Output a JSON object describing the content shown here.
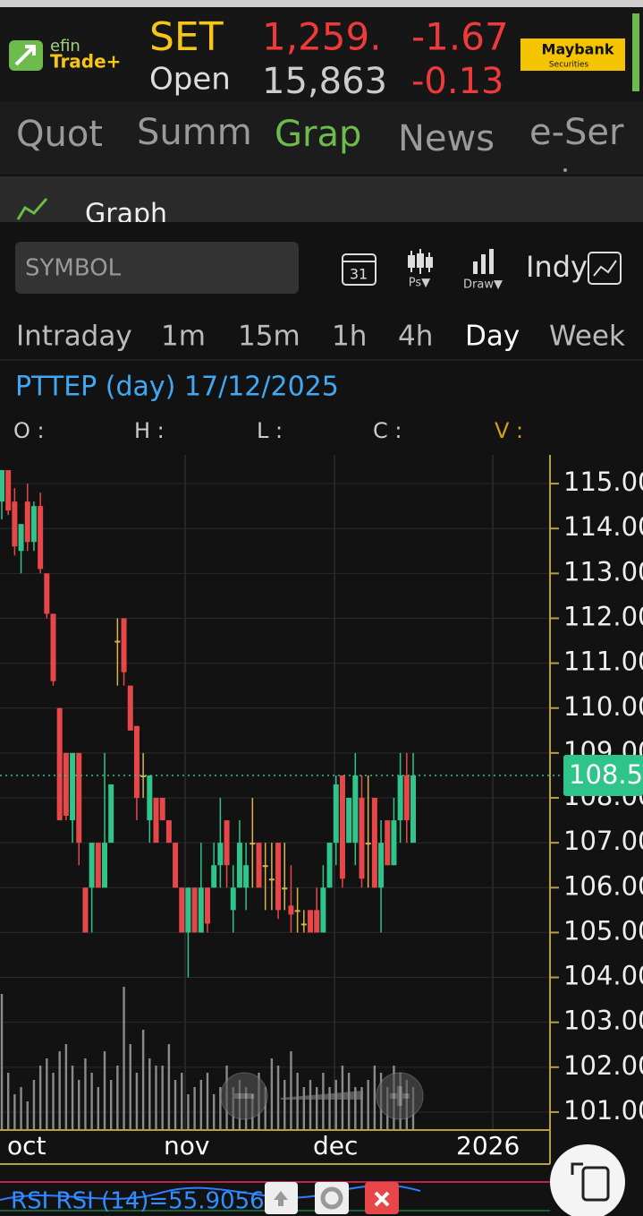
{
  "header": {
    "logo_top": "efin",
    "logo_bottom": "Trade+",
    "index": "SET",
    "index_value": "1,259.",
    "change": "-1.67",
    "open_label": "Open",
    "open_value": "15,863",
    "change2": "-0.13",
    "broker": "Maybank",
    "broker_sub": "Securities"
  },
  "tabs": [
    "Quot",
    "Summ",
    "Grap",
    "News",
    "e-Ser"
  ],
  "active_tab": 2,
  "section_title": "Graph",
  "symbol_placeholder": "SYMBOL",
  "tools": {
    "calendar": "31",
    "ps": "Ps▼",
    "draw": "Draw▼",
    "indy": "Indy"
  },
  "intervals": [
    "Intraday",
    "1m",
    "15m",
    "1h",
    "4h",
    "Day",
    "Week"
  ],
  "active_interval": 5,
  "chart_data": {
    "type": "candlestick",
    "title": "PTTEP (day) 17/12/2025",
    "info_labels": [
      "O :",
      "H :",
      "L :",
      "C :",
      "V :"
    ],
    "open": [
      114.6,
      115.3,
      114.6,
      113.5,
      114.6,
      113.7,
      114.5,
      113.0,
      112.1,
      110.0,
      109.0,
      107.5,
      109.0,
      106.0,
      106.0,
      107.0,
      106.0,
      107.0,
      111.5,
      112.0,
      110.5,
      109.6,
      108.5,
      107.5,
      108.0,
      108.0,
      107.5,
      107.0,
      106.0,
      105.0,
      106.0,
      105.0,
      106.0,
      106.0,
      106.5,
      107.5,
      105.5,
      106.0,
      106.0,
      107.0,
      107.0,
      106.5,
      106.2,
      107.0,
      106.0,
      105.6,
      105.5,
      105.2,
      105.5,
      105.5,
      105.0,
      106.0,
      107.0,
      108.5,
      107.0,
      107.0,
      108.0,
      107.0,
      108.0,
      106.0,
      107.5,
      106.5,
      107.5,
      108.5,
      107.0
    ],
    "high": [
      115.3,
      115.3,
      114.9,
      114.1,
      115.0,
      114.6,
      114.8,
      113.0,
      112.1,
      110.0,
      109.0,
      109.0,
      109.0,
      106.0,
      107.0,
      107.0,
      109.0,
      108.3,
      112.0,
      112.0,
      110.5,
      109.6,
      109.0,
      108.5,
      108.0,
      108.0,
      107.5,
      107.0,
      106.0,
      106.0,
      106.0,
      107.0,
      106.0,
      107.0,
      108.0,
      107.5,
      106.5,
      107.5,
      107.0,
      108.0,
      107.0,
      107.0,
      107.0,
      107.0,
      107.0,
      106.5,
      106.0,
      105.5,
      105.5,
      106.0,
      106.5,
      107.0,
      108.5,
      108.5,
      108.0,
      109.0,
      108.5,
      108.5,
      108.0,
      107.5,
      107.5,
      108.0,
      109.0,
      109.0,
      109.0
    ],
    "low": [
      114.2,
      114.3,
      113.4,
      113.0,
      113.5,
      113.5,
      113.0,
      112.0,
      110.5,
      107.5,
      107.5,
      107.0,
      106.5,
      105.0,
      105.0,
      106.0,
      106.0,
      107.0,
      110.5,
      110.5,
      109.5,
      107.5,
      108.0,
      107.0,
      107.0,
      107.5,
      107.0,
      106.0,
      105.0,
      104.0,
      105.0,
      105.0,
      105.0,
      106.0,
      106.0,
      106.0,
      105.0,
      106.0,
      105.5,
      106.0,
      106.0,
      105.5,
      105.5,
      105.3,
      105.5,
      105.0,
      105.0,
      105.0,
      105.0,
      105.0,
      105.0,
      106.0,
      106.5,
      106.0,
      107.0,
      106.5,
      106.0,
      106.0,
      106.0,
      105.0,
      106.5,
      106.5,
      107.0,
      107.0,
      107.0
    ],
    "close": [
      115.3,
      114.4,
      113.6,
      114.1,
      113.7,
      114.5,
      113.1,
      112.1,
      110.6,
      107.5,
      107.6,
      109.0,
      107.0,
      105.0,
      107.0,
      106.0,
      107.0,
      108.3,
      111.5,
      110.8,
      109.5,
      108.0,
      108.5,
      108.5,
      107.0,
      107.5,
      107.0,
      106.0,
      105.0,
      106.0,
      105.0,
      106.0,
      105.2,
      106.5,
      107.0,
      106.5,
      106.0,
      107.0,
      106.5,
      107.0,
      106.0,
      106.5,
      106.2,
      105.5,
      106.0,
      105.4,
      105.5,
      105.2,
      105.0,
      105.0,
      106.0,
      107.0,
      108.3,
      106.2,
      108.0,
      108.5,
      106.2,
      107.0,
      106.0,
      107.0,
      106.5,
      107.5,
      108.5,
      107.5,
      108.5
    ],
    "volume": [
      95,
      40,
      25,
      30,
      20,
      35,
      45,
      50,
      40,
      55,
      60,
      45,
      35,
      50,
      40,
      30,
      55,
      35,
      45,
      100,
      60,
      40,
      70,
      50,
      45,
      45,
      60,
      35,
      40,
      25,
      30,
      35,
      40,
      25,
      30,
      45,
      30,
      35,
      30,
      25,
      40,
      30,
      50,
      45,
      35,
      55,
      40,
      30,
      35,
      30,
      40,
      30,
      35,
      45,
      40,
      30,
      30,
      35,
      45,
      40,
      30,
      45,
      40,
      35,
      30
    ],
    "x_labels": [
      "oct",
      "nov",
      "dec",
      "2026"
    ],
    "ylim": [
      100.6,
      115.64
    ],
    "yticks": [
      {
        "value": 101,
        "label": "101.00"
      },
      {
        "value": 102,
        "label": "102.00"
      },
      {
        "value": 103,
        "label": "103.00"
      },
      {
        "value": 104,
        "label": "104.00"
      },
      {
        "value": 105,
        "label": "105.00"
      },
      {
        "value": 106,
        "label": "106.00"
      },
      {
        "value": 107,
        "label": "107.00"
      },
      {
        "value": 108,
        "label": "108.00"
      },
      {
        "value": 109,
        "label": "109.00"
      },
      {
        "value": 110,
        "label": "110.00"
      },
      {
        "value": 111,
        "label": "111.00"
      },
      {
        "value": 112,
        "label": "112.00"
      },
      {
        "value": 113,
        "label": "113.00"
      },
      {
        "value": 114,
        "label": "114.00"
      },
      {
        "value": 115,
        "label": "115.00"
      }
    ],
    "last_price": 108.5,
    "up_color": "#2fc48a",
    "down_color": "#e8474a",
    "flat_color": "#d9b44a",
    "volume_color": "#8a8a8a"
  },
  "indicator": "RSI RSI (14)=55.9056"
}
